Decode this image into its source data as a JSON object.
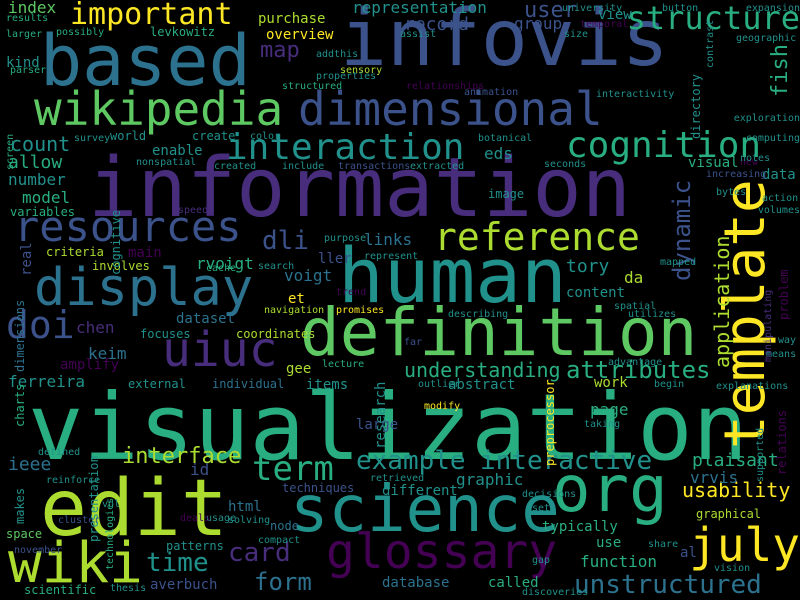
{
  "palette": {
    "background": "#000000",
    "dark_purple": "#440154",
    "purple": "#472d7b",
    "indigo": "#3b528b",
    "blue": "#2c728e",
    "teal": "#21918c",
    "green_teal": "#28ae80",
    "green": "#5ec962",
    "lime": "#addc30",
    "yellow": "#fde725"
  },
  "words": [
    "visualization",
    "information",
    "infovis",
    "based",
    "edit",
    "human",
    "definition",
    "template",
    "org",
    "science",
    "glossary",
    "wikipedia",
    "dimensional",
    "display",
    "resources",
    "uiuc",
    "july",
    "wiki",
    "reference",
    "interaction",
    "cognition",
    "structure",
    "important",
    "doi",
    "term",
    "card",
    "interactive",
    "example",
    "attributes",
    "time",
    "dli",
    "user",
    "form",
    "unstructured",
    "dynamic",
    "application",
    "understanding",
    "fish",
    "count",
    "usability",
    "plaisant",
    "interface",
    "map",
    "representation",
    "record",
    "index",
    "allow",
    "number",
    "model",
    "ieee",
    "ferreira",
    "keim",
    "chen",
    "rvoigt",
    "voigt",
    "tory",
    "links",
    "criteria",
    "main",
    "involves",
    "dataset",
    "coordinates",
    "focuses",
    "content",
    "page",
    "work",
    "abstract",
    "items",
    "gee",
    "individual",
    "external",
    "large",
    "research",
    "graphic",
    "different",
    "techniques",
    "html",
    "id",
    "node",
    "use",
    "function",
    "patterns",
    "averbuch",
    "database",
    "called",
    "scientific",
    "space",
    "makes",
    "vrvis",
    "graphical",
    "al",
    "data",
    "visual",
    "eds",
    "group",
    "view",
    "purchase",
    "overview",
    "levkowitz",
    "enable",
    "create",
    "problem",
    "real",
    "typically",
    "image",
    "mapped",
    "da",
    "et",
    "ller",
    "navigation",
    "promises",
    "lecture",
    "amplify",
    "dimensions",
    "charts",
    "modify",
    "defined",
    "reinforce",
    "cluster",
    "usage",
    "deals",
    "solving",
    "compact",
    "thesis",
    "discoveries",
    "november",
    "vol",
    "presentation",
    "technologies",
    "retrieved",
    "decisions",
    "set",
    "gap",
    "share",
    "vision",
    "preprocessor",
    "relations",
    "supported",
    "taking",
    "explanations",
    "begin",
    "outlier",
    "advantage",
    "means",
    "way",
    "manipulating",
    "spatial",
    "utilizes",
    "describing",
    "far",
    "represent",
    "search",
    "cache",
    "purpose",
    "trend",
    "speed",
    "nonspatial",
    "cognitive",
    "variables",
    "world",
    "survey",
    "screen",
    "kind",
    "parser",
    "larger",
    "results",
    "possibly",
    "addthis",
    "sensory",
    "properties",
    "structured",
    "relationships",
    "animation",
    "interactivity",
    "botanical",
    "color",
    "created",
    "include",
    "transactions",
    "extracted",
    "seconds",
    "increasing",
    "new",
    "notes",
    "action",
    "volumes",
    "bytes",
    "computing",
    "exploration",
    "directory",
    "contrast",
    "geographic",
    "button",
    "expansion",
    "university",
    "assist",
    "size",
    "temporal"
  ]
}
